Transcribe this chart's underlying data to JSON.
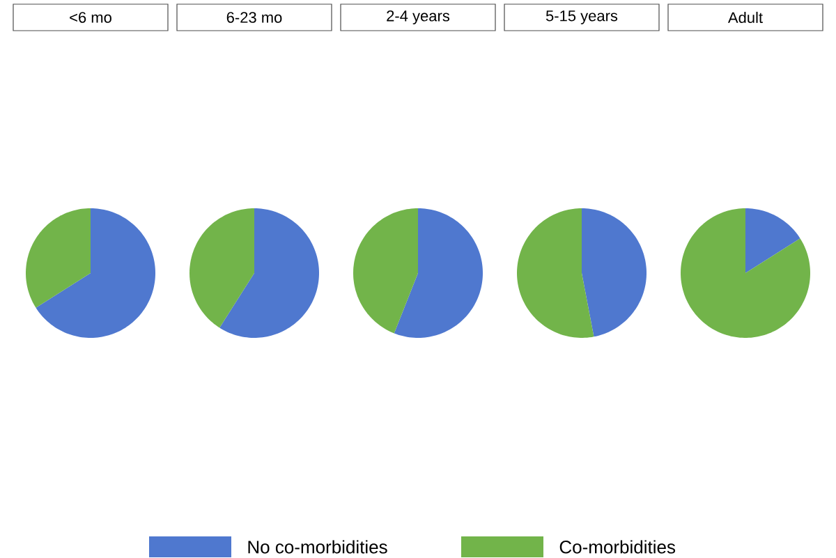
{
  "chart_data": [
    {
      "type": "pie",
      "title": "<6 mo",
      "categories": [
        "No co-morbidities",
        "Co-morbidities"
      ],
      "values": [
        66,
        34
      ],
      "colors": [
        "#4f78cf",
        "#72b44a"
      ],
      "legend": "bottom"
    },
    {
      "type": "pie",
      "title": "6-23 mo",
      "categories": [
        null,
        null
      ],
      "values": [
        59,
        41
      ],
      "colors": [
        "#4f78cf",
        "#72b44a"
      ]
    },
    {
      "type": "pie",
      "title": "2-4 years",
      "categories": [
        null,
        null
      ],
      "values": [
        56,
        44
      ],
      "colors": [
        "#4f78cf",
        "#72b44a"
      ]
    },
    {
      "type": "pie",
      "title": "5-15 years",
      "categories": [
        null,
        null
      ],
      "values": [
        47,
        53
      ],
      "colors": [
        "#4f78cf",
        "#72b44a"
      ]
    },
    {
      "type": "pie",
      "title": "Adult",
      "categories": [
        null,
        null
      ],
      "values": [
        16,
        84
      ],
      "colors": [
        "#4f78cf",
        "#72b44a"
      ]
    }
  ]
}
